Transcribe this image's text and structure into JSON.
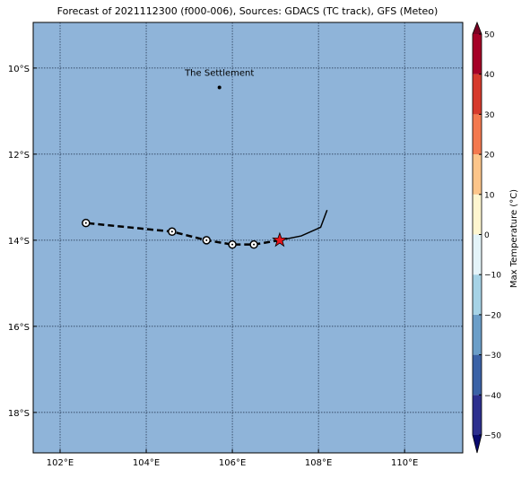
{
  "title": "Forecast of 2021112300 (f000-006), Sources: GDACS (TC track), GFS (Meteo)",
  "map": {
    "background": "#8fb4d9",
    "lonlim": [
      101.375,
      111.35
    ],
    "latlim": [
      -18.94,
      -8.94
    ],
    "lonticks": [
      {
        "value": 102,
        "label": "102°E"
      },
      {
        "value": 104,
        "label": "104°E"
      },
      {
        "value": 106,
        "label": "106°E"
      },
      {
        "value": 108,
        "label": "108°E"
      },
      {
        "value": 110,
        "label": "110°E"
      }
    ],
    "latticks": [
      {
        "value": -10,
        "label": "10°S"
      },
      {
        "value": -12,
        "label": "12°S"
      },
      {
        "value": -14,
        "label": "14°S"
      },
      {
        "value": -16,
        "label": "16°S"
      },
      {
        "value": -18,
        "label": "18°S"
      }
    ],
    "grid": true
  },
  "places": [
    {
      "name": "The Settlement",
      "lon": 105.7,
      "lat": -10.45
    }
  ],
  "track": {
    "observed": {
      "lon": [
        108.2,
        108.05,
        107.6,
        107.1
      ],
      "lat": [
        -13.3,
        -13.7,
        -13.9,
        -14.0
      ]
    },
    "forecast": {
      "lon": [
        107.1,
        106.5,
        106.0,
        105.4,
        104.6,
        102.6
      ],
      "lat": [
        -14.0,
        -14.1,
        -14.1,
        -14.0,
        -13.8,
        -13.6
      ]
    },
    "current_color": "#e8141c"
  },
  "colorbar": {
    "label": "Max Temperature (°C)",
    "lim": [
      -50,
      50
    ],
    "ticks": [
      {
        "value": -50,
        "label": "−50"
      },
      {
        "value": -40,
        "label": "−40"
      },
      {
        "value": -30,
        "label": "−30"
      },
      {
        "value": -20,
        "label": "−20"
      },
      {
        "value": -10,
        "label": "−10"
      },
      0,
      10,
      20,
      30,
      40,
      50
    ],
    "colors": [
      "#2d2f8e",
      "#3b62a6",
      "#6b9ec8",
      "#a6d3e6",
      "#e4f4f9",
      "#fff6d0",
      "#fdc58a",
      "#f3794f",
      "#d63a2c",
      "#a50026"
    ],
    "under": "#0a0a6e",
    "over": "#7a0022"
  }
}
